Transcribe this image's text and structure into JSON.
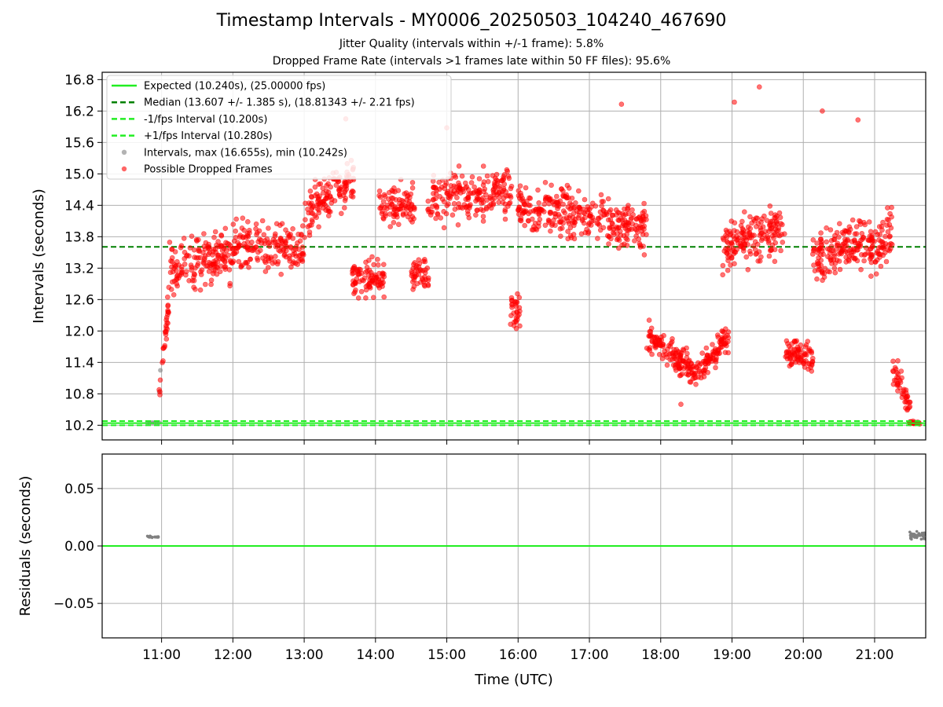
{
  "figure": {
    "title": "Timestamp Intervals - MY0006_20250503_104240_467690",
    "subtitle_1": "Jitter Quality (intervals within +/-1 frame): 5.8%",
    "subtitle_2": "Dropped Frame Rate (intervals >1 frames late within 50 FF files): 95.6%"
  },
  "colors": {
    "expected": "#22ee22",
    "median": "#008000",
    "fps_bounds": "#22ee22",
    "intervals": "#808080",
    "dropped": "#ff0000",
    "grid": "#b0b0b0"
  },
  "chart_data": [
    {
      "type": "scatter",
      "panel": "top",
      "xlabel": "",
      "ylabel": "Intervals (seconds)",
      "xlim": [
        "10:10",
        "21:43"
      ],
      "ylim": [
        9.92,
        16.94
      ],
      "yticks": [
        "10.2",
        "10.8",
        "11.4",
        "12.0",
        "12.6",
        "13.2",
        "13.8",
        "14.4",
        "15.0",
        "15.6",
        "16.2",
        "16.8"
      ],
      "grid": true,
      "legend_position": "top-left",
      "legend": [
        {
          "label": "Expected (10.240s), (25.00000 fps)",
          "style": "line",
          "color_key": "expected"
        },
        {
          "label": "Median (13.607 +/- 1.385 s), (18.81343 +/- 2.21 fps)",
          "style": "dashed",
          "color_key": "median"
        },
        {
          "label": "-1/fps Interval (10.200s)",
          "style": "dashed",
          "color_key": "fps_bounds"
        },
        {
          "label": "+1/fps Interval (10.280s)",
          "style": "dashed",
          "color_key": "fps_bounds"
        },
        {
          "label": "Intervals, max (16.655s), min (10.242s)",
          "style": "dot",
          "color_key": "intervals"
        },
        {
          "label": "Possible Dropped Frames",
          "style": "dot",
          "color_key": "dropped"
        }
      ],
      "reference_lines": {
        "expected": 10.24,
        "median": 13.607,
        "minus_one_fps": 10.2,
        "plus_one_fps": 10.28
      },
      "series": [
        {
          "name": "Intervals, max (16.655s), min (10.242s)",
          "points": [
            [
              "10:48",
              10.25
            ],
            [
              "10:50",
              10.25
            ],
            [
              "10:52",
              10.25
            ],
            [
              "10:54",
              10.25
            ],
            [
              "10:56",
              10.25
            ],
            [
              "10:58",
              10.25
            ],
            [
              "10:58",
              10.84
            ],
            [
              "10:59",
              11.25
            ]
          ]
        },
        {
          "name": "Possible Dropped Frames",
          "segments": [
            {
              "start": "10:58",
              "end": "11:06",
              "from": 10.9,
              "to": 12.5,
              "spread": 0.35,
              "n": 30
            },
            {
              "start": "11:06",
              "end": "12:00",
              "from": 13.25,
              "to": 13.4,
              "spread": 0.55,
              "n": 170
            },
            {
              "start": "12:00",
              "end": "13:00",
              "from": 13.65,
              "to": 13.55,
              "spread": 0.5,
              "n": 170
            },
            {
              "start": "13:00",
              "end": "13:42",
              "from": 14.2,
              "to": 14.9,
              "spread": 0.55,
              "n": 130
            },
            {
              "start": "13:40",
              "end": "14:08",
              "from": 13.0,
              "to": 13.0,
              "spread": 0.45,
              "n": 90
            },
            {
              "start": "14:03",
              "end": "14:33",
              "from": 14.4,
              "to": 14.4,
              "spread": 0.45,
              "n": 90
            },
            {
              "start": "14:30",
              "end": "14:45",
              "from": 13.1,
              "to": 13.1,
              "spread": 0.4,
              "n": 45
            },
            {
              "start": "14:44",
              "end": "15:55",
              "from": 14.5,
              "to": 14.7,
              "spread": 0.55,
              "n": 210
            },
            {
              "start": "15:53",
              "end": "16:02",
              "from": 12.4,
              "to": 12.4,
              "spread": 0.4,
              "n": 30
            },
            {
              "start": "16:00",
              "end": "17:15",
              "from": 14.3,
              "to": 14.2,
              "spread": 0.55,
              "n": 220
            },
            {
              "start": "17:15",
              "end": "17:48",
              "from": 14.05,
              "to": 14.0,
              "spread": 0.5,
              "n": 110
            },
            {
              "start": "17:48",
              "end": "18:30",
              "from": 11.9,
              "to": 11.2,
              "spread": 0.35,
              "n": 140
            },
            {
              "start": "18:30",
              "end": "18:57",
              "from": 11.2,
              "to": 11.9,
              "spread": 0.35,
              "n": 90
            },
            {
              "start": "18:52",
              "end": "19:45",
              "from": 13.6,
              "to": 14.0,
              "spread": 0.6,
              "n": 170
            },
            {
              "start": "19:45",
              "end": "20:08",
              "from": 11.6,
              "to": 11.5,
              "spread": 0.35,
              "n": 80
            },
            {
              "start": "20:08",
              "end": "20:58",
              "from": 13.4,
              "to": 13.7,
              "spread": 0.6,
              "n": 170
            },
            {
              "start": "20:56",
              "end": "21:15",
              "from": 13.4,
              "to": 14.0,
              "spread": 0.55,
              "n": 60
            },
            {
              "start": "21:15",
              "end": "21:30",
              "from": 11.3,
              "to": 10.6,
              "spread": 0.35,
              "n": 45
            },
            {
              "start": "21:29",
              "end": "21:38",
              "from": 10.25,
              "to": 10.25,
              "spread": 0.03,
              "n": 25
            }
          ],
          "notable_points": [
            [
              "13:35",
              16.05
            ],
            [
              "15:00",
              15.88
            ],
            [
              "17:27",
              16.33
            ],
            [
              "19:02",
              16.37
            ],
            [
              "19:23",
              16.66
            ],
            [
              "20:16",
              16.2
            ],
            [
              "20:46",
              16.03
            ],
            [
              "18:17",
              10.6
            ]
          ]
        }
      ]
    },
    {
      "type": "scatter",
      "panel": "bottom",
      "xlabel": "Time (UTC)",
      "ylabel": "Residuals (seconds)",
      "xlim": [
        "10:10",
        "21:43"
      ],
      "ylim": [
        -0.08,
        0.08
      ],
      "xticks": [
        "11:00",
        "12:00",
        "13:00",
        "14:00",
        "15:00",
        "16:00",
        "17:00",
        "18:00",
        "19:00",
        "20:00",
        "21:00"
      ],
      "yticks": [
        "0.05",
        "0.00",
        "−0.05"
      ],
      "grid": true,
      "zero_line": 0,
      "series": [
        {
          "name": "residuals",
          "segments": [
            {
              "start": "10:47",
              "end": "10:58",
              "from": 0.008,
              "to": 0.008,
              "spread": 0.002,
              "n": 22
            },
            {
              "start": "21:29",
              "end": "21:43",
              "from": 0.009,
              "to": 0.009,
              "spread": 0.008,
              "n": 45
            }
          ]
        }
      ]
    }
  ]
}
